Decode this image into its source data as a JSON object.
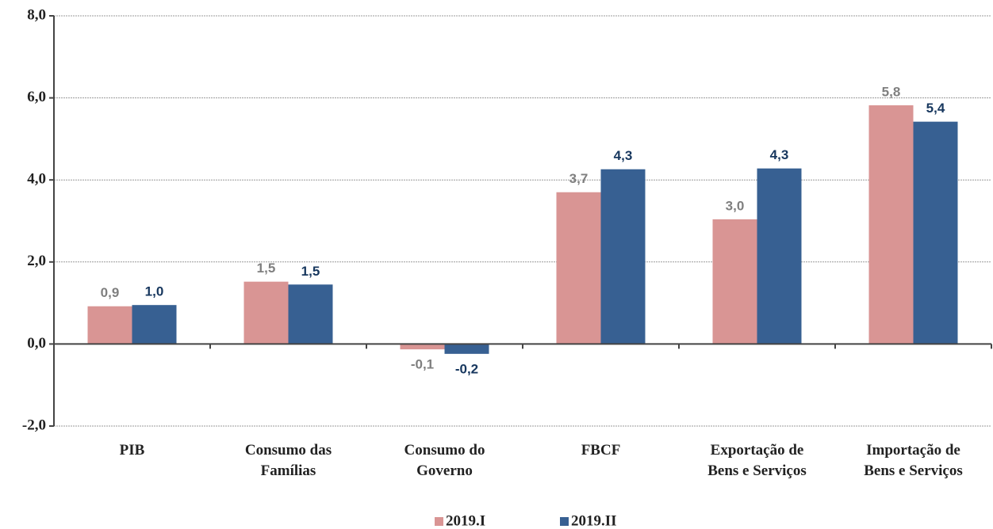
{
  "chart_data": {
    "type": "bar",
    "categories": [
      "PIB",
      "Consumo das\nFamílias",
      "Consumo do\nGoverno",
      "FBCF",
      "Exportação de\nBens e Serviços",
      "Importação de\nBens e Serviços"
    ],
    "series": [
      {
        "name": "2019.I",
        "color": "#d99594",
        "label_color": "#7f7f7f",
        "values": [
          0.92,
          1.52,
          -0.13,
          3.7,
          3.04,
          5.82
        ],
        "value_labels": [
          "0,9",
          "1,5",
          "-0,1",
          "3,7",
          "3,0",
          "5,8"
        ]
      },
      {
        "name": "2019.II",
        "color": "#376092",
        "label_color": "#17375e",
        "values": [
          0.95,
          1.45,
          -0.24,
          4.26,
          4.28,
          5.42
        ],
        "value_labels": [
          "1,0",
          "1,5",
          "-0,2",
          "4,3",
          "4,3",
          "5,4"
        ]
      }
    ],
    "ylim": [
      -2,
      8
    ],
    "yticks": [
      {
        "value": -2,
        "label": "-2,0"
      },
      {
        "value": 0,
        "label": "0,0"
      },
      {
        "value": 2,
        "label": "2,0"
      },
      {
        "value": 4,
        "label": "4,0"
      },
      {
        "value": 6,
        "label": "6,0"
      },
      {
        "value": 8,
        "label": "8,0"
      }
    ],
    "grid": true,
    "legend": "bottom"
  }
}
